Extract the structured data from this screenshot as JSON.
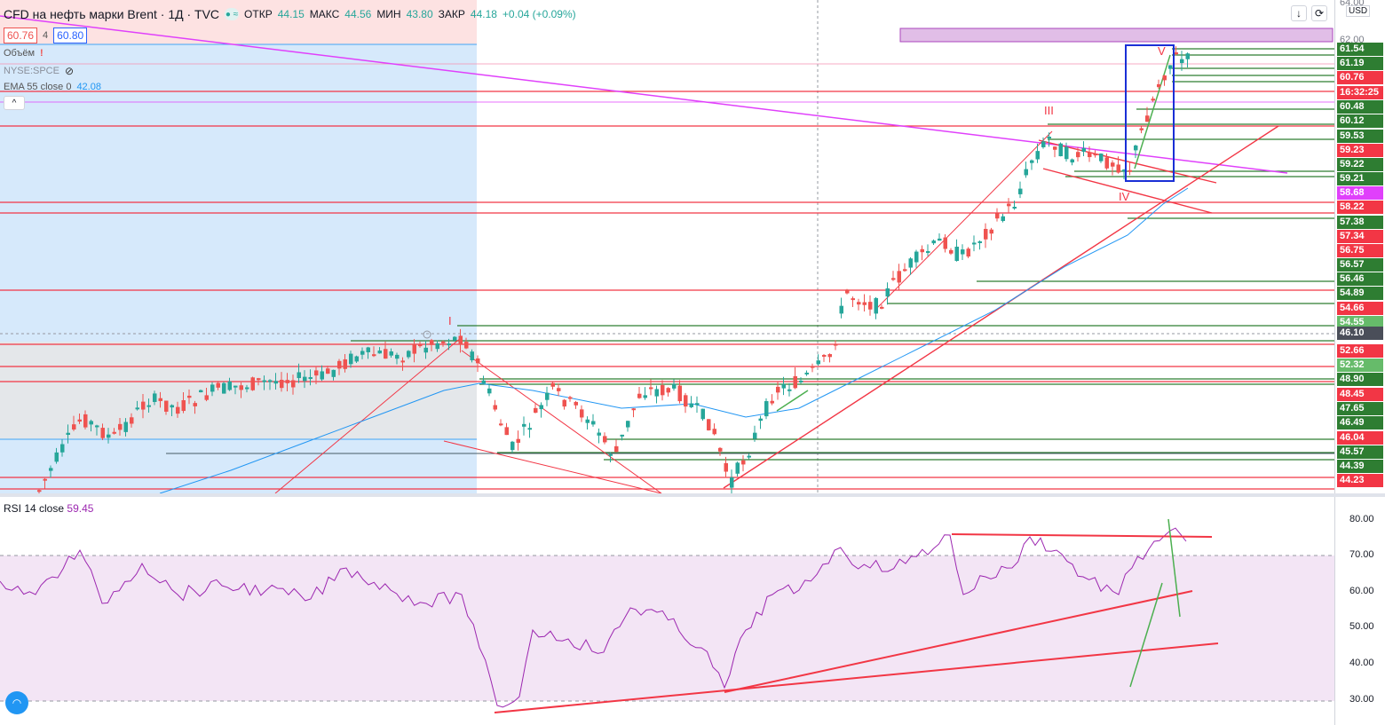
{
  "header": {
    "symbol_title": "CFD на нефть марки Brent · 1Д · TVC",
    "open_label": "ОТКР",
    "open_value": "44.15",
    "high_label": "МАКС",
    "high_value": "44.56",
    "low_label": "МИН",
    "low_value": "43.80",
    "close_label": "ЗАКР",
    "close_value": "44.18",
    "change": "+0.04 (+0.09%)",
    "sell_price": "60.76",
    "spread": "4",
    "buy_price": "60.80"
  },
  "indicators": {
    "volume_label": "Объём",
    "compare_symbol": "NYSE:SPCE",
    "ema_label": "EMA 55 close 0",
    "ema_value": "42.08",
    "rsi_label": "RSI 14 close",
    "rsi_value": "59.45"
  },
  "icons": {
    "alert": "alert-icon",
    "eye": "eye-crossed-icon",
    "collapse": "chevron-up-icon",
    "download": "download-icon",
    "settings": "refresh-icon",
    "logo": "tradingview-logo-icon",
    "crosshair": "plus-icon"
  },
  "toolbar": {
    "arrow_down": "↓",
    "refresh": "⟳",
    "currency": "USD",
    "collapse_glyph": "^"
  },
  "price_axis": {
    "top_tick": "64.00",
    "second_tick": "62.00",
    "labels": [
      {
        "text": "61.54",
        "color": "#2e7d32"
      },
      {
        "text": "61.19",
        "color": "#2e7d32"
      },
      {
        "text": "60.76",
        "color": "#f23645"
      },
      {
        "text": "16:32:25",
        "color": "#f23645"
      },
      {
        "text": "60.48",
        "color": "#2e7d32"
      },
      {
        "text": "60.12",
        "color": "#2e7d32"
      },
      {
        "text": "59.53",
        "color": "#2e7d32"
      },
      {
        "text": "59.23",
        "color": "#f23645"
      },
      {
        "text": "59.22",
        "color": "#2e7d32"
      },
      {
        "text": "59.21",
        "color": "#2e7d32"
      },
      {
        "text": "58.68",
        "color": "#e040fb"
      },
      {
        "text": "58.22",
        "color": "#f23645"
      },
      {
        "text": "57.38",
        "color": "#2e7d32"
      },
      {
        "text": "57.34",
        "color": "#f23645"
      },
      {
        "text": "56.75",
        "color": "#f23645"
      },
      {
        "text": "56.57",
        "color": "#2e7d32"
      },
      {
        "text": "56.46",
        "color": "#2e7d32"
      },
      {
        "text": "54.89",
        "color": "#2e7d32"
      },
      {
        "text": "54.66",
        "color": "#f23645"
      },
      {
        "text": "54.55",
        "color": "#66bb6a"
      },
      {
        "text": "46.10",
        "color": "#4a4e59"
      },
      {
        "text": "52.66",
        "color": "#f23645"
      },
      {
        "text": "52.32",
        "color": "#66bb6a"
      },
      {
        "text": "48.90",
        "color": "#2e7d32"
      },
      {
        "text": "48.45",
        "color": "#f23645"
      },
      {
        "text": "47.65",
        "color": "#2e7d32"
      },
      {
        "text": "46.49",
        "color": "#2e7d32"
      },
      {
        "text": "46.04",
        "color": "#f23645"
      },
      {
        "text": "45.57",
        "color": "#2e7d32"
      },
      {
        "text": "44.39",
        "color": "#2e7d32"
      },
      {
        "text": "44.23",
        "color": "#f23645"
      }
    ]
  },
  "rsi_axis": {
    "ticks": [
      "80.00",
      "70.00",
      "60.00",
      "50.00",
      "40.00",
      "30.00"
    ]
  },
  "waves": [
    "I",
    "III",
    "IV",
    "V"
  ],
  "colors": {
    "up": "#26a69a",
    "down": "#ef5350",
    "support": "#2e7d32",
    "resistance": "#f23645",
    "ema": "#2196f3",
    "rsi": "#9c27b0",
    "trend_magenta": "#e040fb",
    "box_blue": "#1a2fd6"
  }
}
